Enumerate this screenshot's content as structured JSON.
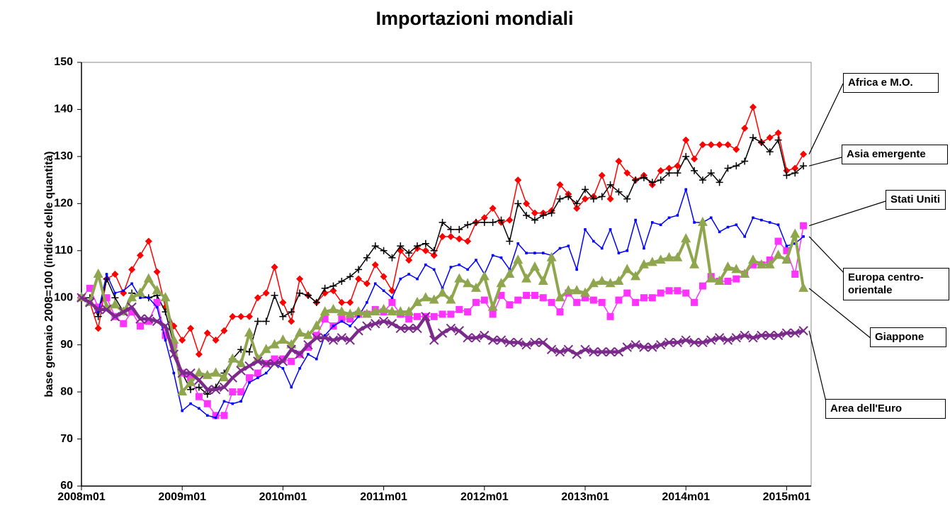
{
  "chart_data": {
    "type": "line",
    "title": "Importazioni mondiali",
    "y_label": "base gennaio 2008=100 (indice delle quantità)",
    "categories": [
      "2008m01",
      null,
      null,
      null,
      null,
      null,
      null,
      null,
      null,
      null,
      null,
      null,
      "2009m01",
      null,
      null,
      null,
      null,
      null,
      null,
      null,
      null,
      null,
      null,
      null,
      "2010m01",
      null,
      null,
      null,
      null,
      null,
      null,
      null,
      null,
      null,
      null,
      null,
      "2011m01",
      null,
      null,
      null,
      null,
      null,
      null,
      null,
      null,
      null,
      null,
      null,
      "2012m01",
      null,
      null,
      null,
      null,
      null,
      null,
      null,
      null,
      null,
      null,
      null,
      "2013m01",
      null,
      null,
      null,
      null,
      null,
      null,
      null,
      null,
      null,
      null,
      null,
      "2014m01",
      null,
      null,
      null,
      null,
      null,
      null,
      null,
      null,
      null,
      null,
      null,
      "2015m01",
      null,
      null
    ],
    "ylim": [
      60,
      150
    ],
    "yticks": [
      60,
      70,
      80,
      90,
      100,
      110,
      120,
      130,
      140,
      150
    ],
    "grid": false,
    "series": [
      {
        "name": "Africa e M.O.",
        "color": "#ff0000",
        "marker": "diamond",
        "values": [
          100,
          99,
          93.5,
          104,
          105,
          101,
          106,
          109,
          112,
          105.5,
          98,
          94,
          91,
          93.5,
          88,
          92.5,
          91,
          93,
          96,
          96,
          96,
          100,
          101,
          106.5,
          99,
          95,
          104,
          100.5,
          99,
          101,
          101.5,
          99,
          99,
          104,
          103,
          107,
          104.5,
          101.5,
          110,
          108,
          110.5,
          110,
          109,
          113,
          113,
          112.5,
          112,
          116,
          117,
          119,
          116,
          116.5,
          125,
          120,
          118,
          118,
          118.5,
          124,
          122,
          119,
          121,
          121.5,
          126,
          121,
          129,
          126.5,
          125,
          126,
          124,
          127,
          127.5,
          128,
          133.5,
          129.5,
          132.5,
          132.5,
          132.5,
          132.5,
          131.5,
          136,
          140.5,
          133,
          134,
          135,
          127,
          127.5,
          130.5
        ]
      },
      {
        "name": "Asia emergente",
        "color": "#000000",
        "marker": "plus",
        "values": [
          100,
          100,
          96,
          104,
          100,
          97,
          101,
          100.5,
          100,
          100.5,
          97,
          90,
          84,
          80.5,
          81,
          79.5,
          81,
          84,
          87,
          89,
          88.5,
          95,
          95,
          100.5,
          96,
          97,
          101,
          100.5,
          99,
          102,
          102.5,
          103.5,
          104.5,
          106,
          108.5,
          111,
          110,
          108.5,
          111,
          109.5,
          111,
          111.5,
          110,
          116,
          114.5,
          114.5,
          115.5,
          116,
          116,
          116,
          116.5,
          112,
          120,
          117.5,
          116.5,
          117.5,
          118,
          121,
          121.5,
          120,
          123,
          121,
          121.5,
          124,
          122.5,
          121,
          125,
          125.5,
          124.5,
          125,
          126.5,
          126.5,
          130,
          127,
          125,
          126.5,
          124.5,
          127.5,
          128,
          129,
          134,
          133,
          131,
          133.5,
          126,
          126.5,
          128
        ]
      },
      {
        "name": "Stati Uniti",
        "color": "#ff33ff",
        "marker": "square",
        "values": [
          100,
          102,
          98,
          100,
          96,
          94.5,
          97,
          94,
          95,
          99,
          92,
          90,
          84,
          83,
          79,
          77.5,
          75,
          75,
          80,
          80,
          83,
          84,
          86,
          87,
          87,
          86.5,
          88,
          89.5,
          92,
          95.5,
          94,
          95.5,
          95.5,
          96.5,
          96.5,
          97.5,
          97,
          99,
          96.5,
          95.5,
          96,
          96,
          96,
          96.5,
          96.5,
          97.5,
          97,
          99,
          99.5,
          96.5,
          100.5,
          98.5,
          99.5,
          100.5,
          100.5,
          100,
          99,
          97,
          101,
          99,
          100,
          99.5,
          99,
          96,
          99.5,
          101,
          99,
          100,
          100,
          101,
          101.5,
          101.5,
          101,
          99,
          102.5,
          104.5,
          103.5,
          103.5,
          104,
          105,
          107,
          107,
          108,
          112,
          110,
          105,
          115.3
        ]
      },
      {
        "name": "Europa centro-orientale",
        "color": "#0000ff",
        "marker": "dot",
        "values": [
          100,
          99,
          97,
          105,
          101,
          101.5,
          103,
          100,
          100,
          98,
          91,
          84,
          76,
          77.5,
          76.5,
          75,
          74.5,
          78,
          77.5,
          78,
          82,
          83,
          84,
          86,
          85,
          81,
          85,
          88,
          87,
          92,
          94,
          95,
          94,
          96,
          99,
          103,
          101.5,
          100,
          104,
          105,
          104,
          107,
          106,
          102,
          106.5,
          107,
          106,
          108,
          105,
          109,
          108.5,
          106,
          111.5,
          109.5,
          109.5,
          109.5,
          109,
          110.5,
          111,
          106,
          114.5,
          112,
          110.5,
          114.5,
          109.5,
          110,
          116.5,
          110.5,
          116,
          115.5,
          117,
          117.5,
          123,
          116,
          116,
          117,
          114,
          115,
          115.5,
          113,
          117,
          116.5,
          116,
          115.5,
          111,
          111.5,
          113
        ]
      },
      {
        "name": "Giappone",
        "color": "#8fa64e",
        "marker": "triangle",
        "values": [
          100,
          99,
          105,
          98,
          98.5,
          97,
          100,
          101,
          104,
          101.5,
          100,
          91,
          80,
          82,
          84,
          83.5,
          84,
          83,
          87,
          86,
          92.5,
          87,
          89,
          90,
          91,
          90,
          92.5,
          92,
          94,
          97,
          97.5,
          97,
          96.5,
          97,
          96.5,
          97,
          97.5,
          97,
          97,
          97,
          99,
          100,
          99.5,
          101,
          99.5,
          104,
          103,
          102,
          104.5,
          98,
          103,
          105,
          108,
          104,
          106.5,
          103.5,
          108.5,
          100,
          101.5,
          101.5,
          101,
          103,
          103.5,
          103,
          103.5,
          106,
          104.5,
          107,
          107.5,
          108,
          108.5,
          108.5,
          112.5,
          107,
          116,
          104,
          103.5,
          106.5,
          106,
          105,
          108,
          107,
          107,
          109,
          108,
          113.5,
          102
        ]
      },
      {
        "name": "Area dell'Euro",
        "color": "#7b2a8c",
        "marker": "x",
        "values": [
          100,
          99,
          97.5,
          97.5,
          96,
          97,
          98,
          95.5,
          95.5,
          95,
          94,
          88,
          84,
          84,
          82.5,
          80.5,
          80.5,
          81,
          83,
          84.5,
          85.5,
          86.5,
          86,
          86,
          86.5,
          89,
          88,
          90,
          91.5,
          91.5,
          91,
          91.5,
          91,
          93,
          94,
          94.5,
          95,
          94.5,
          93.5,
          93.5,
          93.5,
          96,
          91,
          92.5,
          93.5,
          93,
          91.5,
          91.5,
          92,
          91,
          91,
          90.5,
          90.5,
          90,
          90.5,
          90.5,
          89,
          88.5,
          89,
          88,
          89,
          88.5,
          88.5,
          88.5,
          88.5,
          89.5,
          90,
          89.5,
          89.5,
          90,
          90.5,
          90.5,
          91,
          90.5,
          90.5,
          91,
          91.5,
          91,
          91.5,
          92,
          91.5,
          92,
          92,
          92,
          92.5,
          92.5,
          93
        ]
      }
    ]
  }
}
